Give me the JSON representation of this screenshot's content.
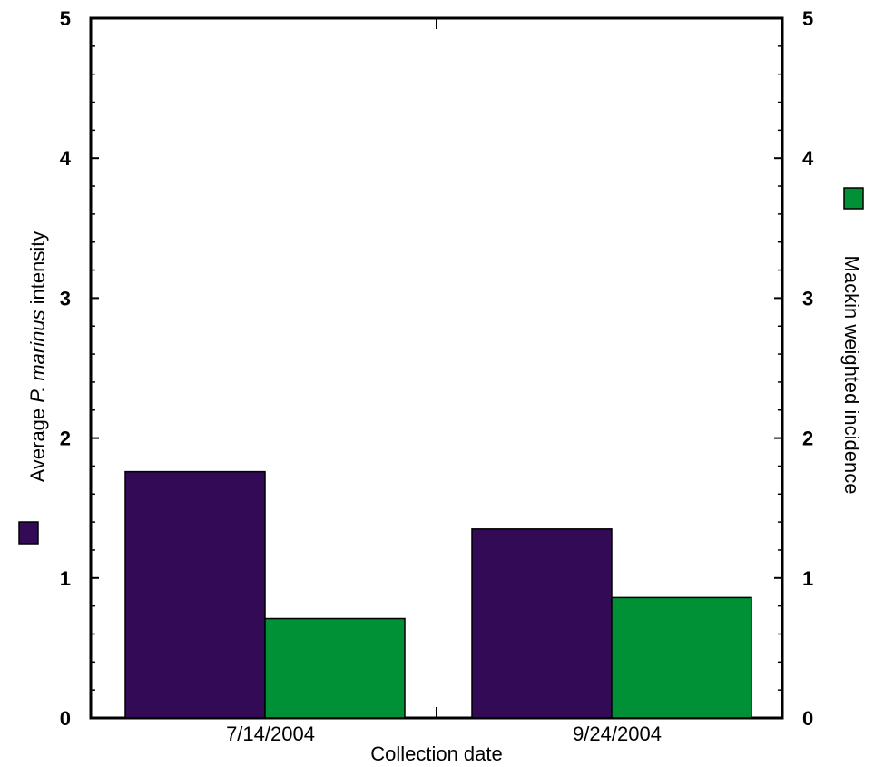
{
  "chart_data": {
    "type": "bar",
    "categories": [
      "7/14/2004",
      "9/24/2004"
    ],
    "series": [
      {
        "name": "Average P. marinus intensity",
        "values": [
          1.76,
          1.35
        ],
        "color": "#330a55",
        "axis": "left"
      },
      {
        "name": "Mackin weighted incidence",
        "values": [
          0.71,
          0.86
        ],
        "color": "#009036",
        "axis": "right"
      }
    ],
    "xlabel": "Collection date",
    "ylabel_left": {
      "prefix": "Average ",
      "italic": "P. marinus",
      "suffix": " intensity"
    },
    "ylabel_right": "Mackin weighted incidence",
    "ylim_left": [
      0,
      5
    ],
    "ylim_right": [
      0,
      5
    ],
    "yticks_left": [
      "0",
      "1",
      "2",
      "3",
      "4",
      "5"
    ],
    "yticks_right": [
      "0",
      "1",
      "2",
      "3",
      "4",
      "5"
    ],
    "grid": false,
    "legend": "markers beside each y-axis title"
  }
}
